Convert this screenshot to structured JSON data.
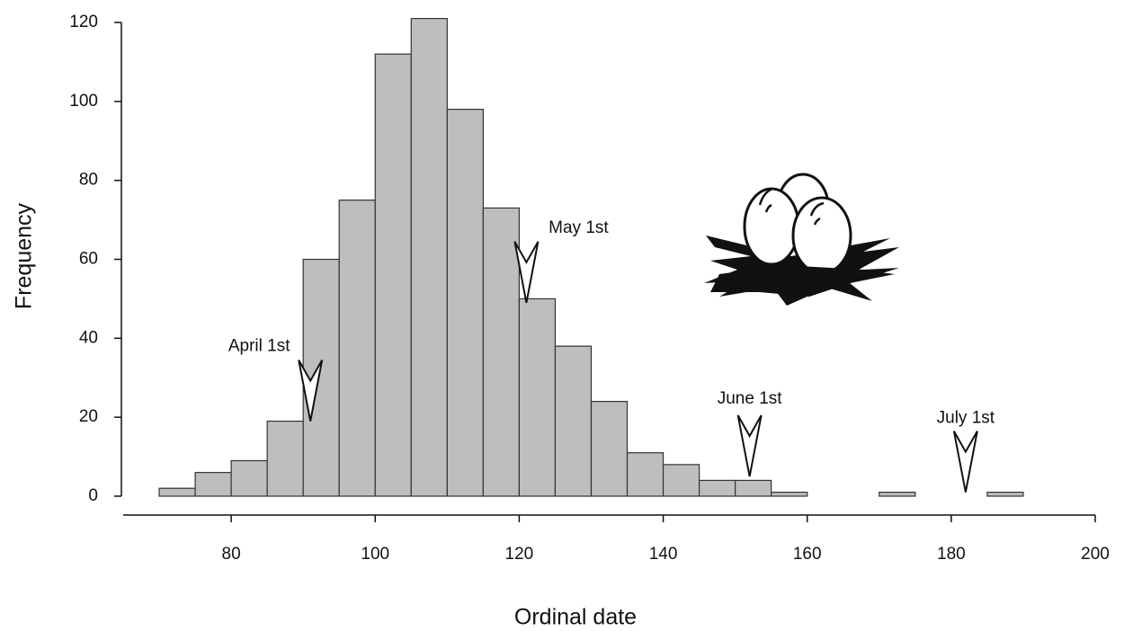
{
  "chart_data": {
    "type": "histogram",
    "x_label": "Ordinal date",
    "y_label": "Frequency",
    "bins": [
      70,
      75,
      80,
      85,
      90,
      95,
      100,
      105,
      110,
      115,
      120,
      125,
      130,
      135,
      140,
      145,
      150,
      155,
      160,
      165,
      170,
      175,
      180,
      185,
      190
    ],
    "values": [
      2,
      6,
      9,
      19,
      60,
      75,
      112,
      121,
      98,
      73,
      50,
      38,
      24,
      11,
      8,
      4,
      4,
      1,
      0,
      0,
      1,
      0,
      0,
      1
    ],
    "color": "#bebebe",
    "xlim": [
      65,
      200
    ],
    "xticks": [
      80,
      100,
      120,
      140,
      160,
      180,
      200
    ],
    "ylim": [
      0,
      120
    ],
    "yticks": [
      0,
      20,
      40,
      60,
      80,
      100,
      120
    ],
    "annotations": [
      {
        "label": "April 1st",
        "x": 91,
        "y": 19
      },
      {
        "label": "May 1st",
        "x": 121,
        "y": 49
      },
      {
        "label": "June 1st",
        "x": 152,
        "y": 5
      },
      {
        "label": "July 1st",
        "x": 182,
        "y": 1
      }
    ]
  }
}
